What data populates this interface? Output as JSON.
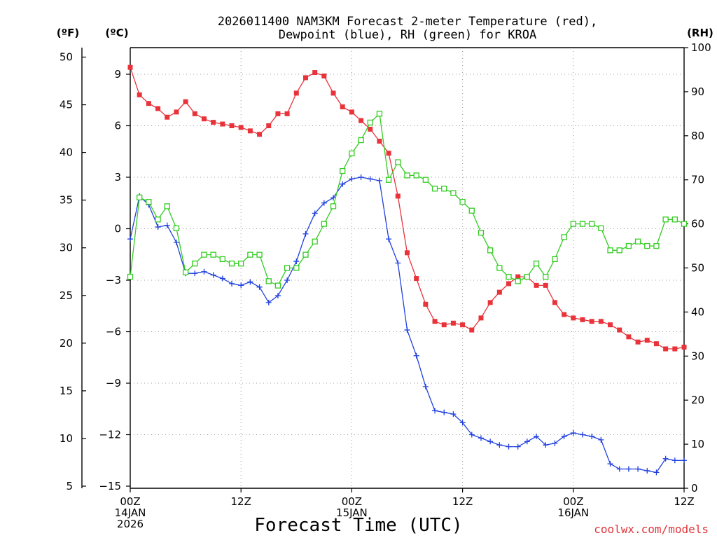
{
  "chart_data": {
    "type": "line",
    "title": {
      "line1": "2026011400 NAM3KM Forecast 2-meter Temperature (red),",
      "line2": "Dewpoint (blue), RH (green) for KROA"
    },
    "xlabel": "Forecast Time (UTC)",
    "credit": "coolwx.com/models",
    "units": {
      "fahrenheit": "(ºF)",
      "celsius": "(ºC)",
      "rh": "(RH)"
    },
    "xlim": [
      0,
      60
    ],
    "ylim_celsius": [
      -15,
      10.5
    ],
    "ylim_rh": [
      0,
      100
    ],
    "x_ticks": [
      {
        "x": 0,
        "lines": [
          "00Z",
          "14JAN",
          "2026"
        ]
      },
      {
        "x": 12,
        "lines": [
          "12Z"
        ]
      },
      {
        "x": 24,
        "lines": [
          "00Z",
          "15JAN"
        ]
      },
      {
        "x": 36,
        "lines": [
          "12Z"
        ]
      },
      {
        "x": 48,
        "lines": [
          "00Z",
          "16JAN"
        ]
      },
      {
        "x": 60,
        "lines": [
          "12Z"
        ]
      }
    ],
    "celsius_ticks": [
      -15,
      -12,
      -9,
      -6,
      -3,
      0,
      3,
      6,
      9
    ],
    "celsius_tick_labels": [
      "−15",
      "−12",
      "−9",
      "−6",
      "−3",
      "0",
      "3",
      "6",
      "9"
    ],
    "fahrenheit_ticks": [
      5,
      10,
      15,
      20,
      25,
      30,
      35,
      40,
      45,
      50
    ],
    "rh_ticks": [
      0,
      10,
      20,
      30,
      40,
      50,
      60,
      70,
      80,
      90,
      100
    ],
    "series": [
      {
        "name": "2-meter Temperature",
        "unit": "°C",
        "axis": "celsius",
        "color": "#e8333a",
        "marker": "filled-square",
        "x": [
          0,
          1,
          2,
          3,
          4,
          5,
          6,
          7,
          8,
          9,
          10,
          11,
          12,
          13,
          14,
          15,
          16,
          17,
          18,
          19,
          20,
          21,
          22,
          23,
          24,
          25,
          26,
          27,
          28,
          29,
          30,
          31,
          32,
          33,
          34,
          35,
          36,
          37,
          38,
          39,
          40,
          41,
          42,
          43,
          44,
          45,
          46,
          47,
          48,
          49,
          50,
          51,
          52,
          53,
          54,
          55,
          56,
          57,
          58,
          59,
          60
        ],
        "values": [
          9.4,
          7.8,
          7.3,
          7.0,
          6.5,
          6.8,
          7.4,
          6.7,
          6.4,
          6.2,
          6.1,
          6.0,
          5.9,
          5.7,
          5.5,
          6.0,
          6.7,
          6.7,
          7.9,
          8.8,
          9.1,
          8.9,
          7.9,
          7.1,
          6.8,
          6.3,
          5.8,
          5.1,
          4.4,
          1.9,
          -1.4,
          -2.9,
          -4.4,
          -5.4,
          -5.6,
          -5.5,
          -5.6,
          -5.9,
          -5.2,
          -4.3,
          -3.7,
          -3.2,
          -2.8,
          -2.8,
          -3.3,
          -3.3,
          -4.3,
          -5.0,
          -5.2,
          -5.3,
          -5.4,
          -5.4,
          -5.6,
          -5.9,
          -6.3,
          -6.6,
          -6.5,
          -6.7,
          -7.0,
          -7.0,
          -6.9
        ]
      },
      {
        "name": "Dewpoint",
        "unit": "°C",
        "axis": "celsius",
        "color": "#2040e0",
        "marker": "plus",
        "x": [
          0,
          1,
          2,
          3,
          4,
          5,
          6,
          7,
          8,
          9,
          10,
          11,
          12,
          13,
          14,
          15,
          16,
          17,
          18,
          19,
          20,
          21,
          22,
          23,
          24,
          25,
          26,
          27,
          28,
          29,
          30,
          31,
          32,
          33,
          34,
          35,
          36,
          37,
          38,
          39,
          40,
          41,
          42,
          43,
          44,
          45,
          46,
          47,
          48,
          49,
          50,
          51,
          52,
          53,
          54,
          55,
          56,
          57,
          58,
          59,
          60
        ],
        "values": [
          -0.6,
          1.9,
          1.4,
          0.1,
          0.2,
          -0.8,
          -2.6,
          -2.6,
          -2.5,
          -2.7,
          -2.9,
          -3.2,
          -3.3,
          -3.1,
          -3.4,
          -4.3,
          -3.9,
          -3.0,
          -1.9,
          -0.3,
          0.9,
          1.5,
          1.8,
          2.6,
          2.9,
          3.0,
          2.9,
          2.8,
          -0.6,
          -2.0,
          -5.9,
          -7.4,
          -9.2,
          -10.6,
          -10.7,
          -10.8,
          -11.3,
          -12.0,
          -12.2,
          -12.4,
          -12.6,
          -12.7,
          -12.7,
          -12.4,
          -12.1,
          -12.6,
          -12.5,
          -12.1,
          -11.9,
          -12.0,
          -12.1,
          -12.3,
          -13.7,
          -14.0,
          -14.0,
          -14.0,
          -14.1,
          -14.2,
          -13.4,
          -13.5,
          -13.5
        ]
      },
      {
        "name": "RH",
        "unit": "%",
        "axis": "rh",
        "color": "#33cc22",
        "marker": "open-square",
        "x": [
          0,
          1,
          2,
          3,
          4,
          5,
          6,
          7,
          8,
          9,
          10,
          11,
          12,
          13,
          14,
          15,
          16,
          17,
          18,
          19,
          20,
          21,
          22,
          23,
          24,
          25,
          26,
          27,
          28,
          29,
          30,
          31,
          32,
          33,
          34,
          35,
          36,
          37,
          38,
          39,
          40,
          41,
          42,
          43,
          44,
          45,
          46,
          47,
          48,
          49,
          50,
          51,
          52,
          53,
          54,
          55,
          56,
          57,
          58,
          59,
          60
        ],
        "values": [
          48,
          66,
          65,
          61,
          64,
          59,
          49,
          51,
          53,
          53,
          52,
          51,
          51,
          53,
          53,
          47,
          46,
          50,
          50,
          53,
          56,
          60,
          64,
          72,
          76,
          79,
          83,
          85,
          70,
          74,
          71,
          71,
          70,
          68,
          68,
          67,
          65,
          63,
          58,
          54,
          50,
          48,
          47,
          48,
          51,
          48,
          52,
          57,
          60,
          60,
          60,
          59,
          54,
          54,
          55,
          56,
          55,
          55,
          61,
          61,
          60
        ]
      }
    ]
  }
}
